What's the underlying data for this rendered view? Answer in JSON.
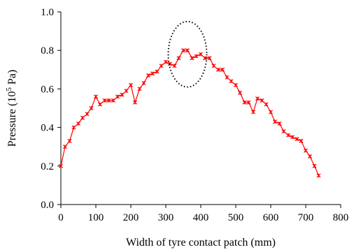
{
  "chart_data": {
    "type": "line",
    "title": "",
    "xlabel": "Width of tyre contact patch (mm)",
    "ylabel_main": "Pressure (10",
    "ylabel_sup": "5",
    "ylabel_unit": " Pa)",
    "xlim": [
      0,
      800
    ],
    "ylim": [
      0.0,
      1.0
    ],
    "x_ticks": [
      "0",
      "100",
      "200",
      "300",
      "400",
      "500",
      "600",
      "700",
      "800"
    ],
    "y_ticks": [
      "0.0",
      "0.2",
      "0.4",
      "0.6",
      "0.8",
      "1.0"
    ],
    "grid": false,
    "legend": "none",
    "series_color": "#ff0000",
    "marker": "asterisk",
    "series": [
      {
        "x": [
          0,
          12,
          25,
          37,
          50,
          62,
          75,
          87,
          100,
          112,
          125,
          137,
          150,
          162,
          175,
          187,
          200,
          212,
          225,
          237,
          250,
          262,
          275,
          287,
          300,
          312,
          325,
          337,
          350,
          362,
          375,
          387,
          400,
          412,
          425,
          437,
          450,
          462,
          475,
          487,
          500,
          512,
          525,
          537,
          550,
          562,
          575,
          587,
          600,
          612,
          625,
          637,
          650,
          662,
          675,
          687,
          700,
          712,
          725,
          737
        ],
        "y": [
          0.2,
          0.3,
          0.33,
          0.4,
          0.42,
          0.45,
          0.47,
          0.5,
          0.56,
          0.52,
          0.54,
          0.54,
          0.54,
          0.56,
          0.57,
          0.59,
          0.62,
          0.53,
          0.6,
          0.63,
          0.67,
          0.68,
          0.69,
          0.72,
          0.74,
          0.73,
          0.72,
          0.76,
          0.8,
          0.8,
          0.76,
          0.77,
          0.78,
          0.76,
          0.76,
          0.72,
          0.7,
          0.7,
          0.66,
          0.64,
          0.62,
          0.58,
          0.53,
          0.53,
          0.48,
          0.55,
          0.54,
          0.52,
          0.48,
          0.43,
          0.42,
          0.38,
          0.36,
          0.35,
          0.34,
          0.33,
          0.28,
          0.25,
          0.2,
          0.15
        ]
      }
    ],
    "annotation": {
      "shape": "dotted-ellipse",
      "cx": 362,
      "cy": 0.78,
      "rx": 55,
      "ry": 0.17
    }
  }
}
